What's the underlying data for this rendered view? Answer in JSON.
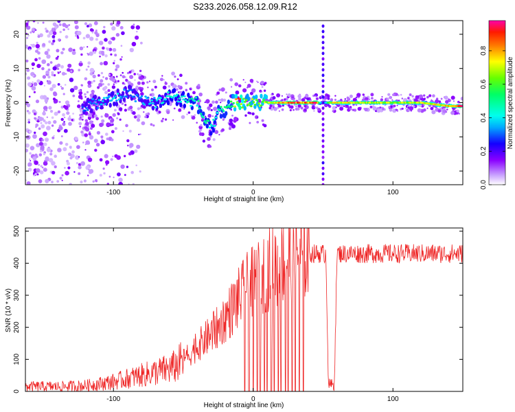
{
  "title": "S233.2026.058.12.09.R12",
  "chart_data": [
    {
      "type": "heatmap",
      "xlabel": "Height of straight line (km)",
      "ylabel": "Frequency (Hz)",
      "xlim": [
        -163,
        150
      ],
      "ylim": [
        -24,
        24
      ],
      "xticks": [
        -100,
        0,
        100
      ],
      "yticks": [
        -20,
        -10,
        0,
        10,
        20
      ],
      "colorbar": {
        "label": "Normalized spectral amplitude",
        "range": [
          0,
          0.98
        ],
        "ticks": [
          0.0,
          0.2,
          0.4,
          0.6,
          0.8
        ],
        "tick_labels": [
          "0.0",
          "0.2",
          "0.4",
          "0.6",
          "0.8"
        ]
      },
      "ridge": {
        "x": [
          -120,
          -110,
          -100,
          -90,
          -80,
          -70,
          -60,
          -50,
          -40,
          -35,
          -30,
          -25,
          -20,
          -15,
          -10,
          -5,
          0,
          10,
          20,
          30,
          40,
          45,
          50,
          55,
          60,
          80,
          100,
          120,
          140,
          150
        ],
        "freq": [
          -1,
          0,
          1,
          3,
          1,
          0,
          2,
          1,
          0,
          -5,
          -8,
          -3,
          -2,
          0,
          0,
          0,
          0,
          0,
          0,
          0,
          0,
          0,
          0,
          0,
          0,
          0,
          0,
          0,
          -1,
          -1
        ],
        "amplitude": [
          0.3,
          0.35,
          0.4,
          0.3,
          0.35,
          0.4,
          0.45,
          0.45,
          0.5,
          0.5,
          0.45,
          0.5,
          0.5,
          0.55,
          0.9,
          0.6,
          0.65,
          0.7,
          0.8,
          0.9,
          0.85,
          0.95,
          0.2,
          0.7,
          0.75,
          0.7,
          0.7,
          0.7,
          0.8,
          0.95
        ]
      },
      "interference_line": {
        "x": 50,
        "freq_range": [
          -24,
          24
        ],
        "amplitude": 0.2
      },
      "noise_region": {
        "x_range": [
          -163,
          -80
        ],
        "freq_range": [
          -24,
          24
        ],
        "amplitude": 0.15
      }
    },
    {
      "type": "line",
      "xlabel": "Height of straight line (km)",
      "ylabel": "SNR (10 * v/v)",
      "xlim": [
        -163,
        150
      ],
      "ylim": [
        0,
        510
      ],
      "xticks": [
        -100,
        0,
        100
      ],
      "yticks": [
        0,
        100,
        200,
        300,
        400,
        500
      ],
      "color": "#ee2222",
      "series": [
        {
          "name": "SNR",
          "x": [
            -163,
            -140,
            -120,
            -100,
            -90,
            -80,
            -70,
            -60,
            -55,
            -50,
            -45,
            -40,
            -35,
            -30,
            -25,
            -20,
            -15,
            -10,
            -5,
            0,
            5,
            10,
            15,
            20,
            25,
            30,
            35,
            40,
            45,
            50,
            52,
            54,
            56,
            58,
            60,
            70,
            80,
            90,
            100,
            110,
            120,
            130,
            140,
            150
          ],
          "y": [
            15,
            15,
            18,
            30,
            40,
            50,
            60,
            70,
            80,
            100,
            120,
            140,
            160,
            180,
            200,
            230,
            260,
            290,
            320,
            340,
            360,
            380,
            390,
            405,
            415,
            420,
            425,
            430,
            430,
            430,
            430,
            20,
            20,
            20,
            430,
            430,
            430,
            430,
            430,
            430,
            430,
            430,
            430,
            430
          ],
          "dropouts_to_zero": [
            -6,
            -3,
            0,
            3,
            5,
            8,
            10,
            13,
            15,
            18,
            20,
            23,
            25,
            28,
            30,
            33,
            36
          ]
        }
      ]
    }
  ]
}
